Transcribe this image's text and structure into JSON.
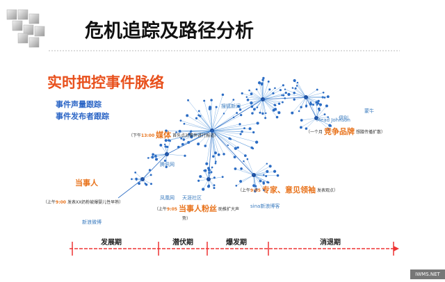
{
  "header": {
    "title": "危机追踪及路径分析"
  },
  "subtitle": "实时把控事件脉络",
  "bullets": [
    "事件声量跟踪",
    "事件发布者跟踪"
  ],
  "annotations": [
    {
      "heading": "当事人",
      "prefix": "（上午",
      "time": "9:00",
      "desc": "发表XX奶粉被爆婴儿性早熟）"
    },
    {
      "prefix": "（下午",
      "time": "13:00",
      "actor": "媒体",
      "desc": "首先点对事件进行报道）"
    },
    {
      "prefix": "（上午",
      "time": "9:05",
      "actor": "当事人粉丝",
      "desc": "助推扩大声",
      "desc2": "势）"
    },
    {
      "prefix": "（上午",
      "time": "9:05",
      "actor": "专家、意见领袖",
      "desc": "发表观点）"
    },
    {
      "prefix": "（一个月",
      "actor": "竞争品牌",
      "desc": "想蹭传播扩散）"
    }
  ],
  "logos": [
    "新浪微博",
    "凤凰网",
    "天涯社区",
    "sina新浪博客",
    "腾讯网",
    "搜狐新闻",
    "Mead Johnson",
    "伊利",
    "蒙牛"
  ],
  "timeline": [
    "发展期",
    "潜伏期",
    "爆发期",
    "消退期"
  ],
  "watermark": "IWMS.NET"
}
